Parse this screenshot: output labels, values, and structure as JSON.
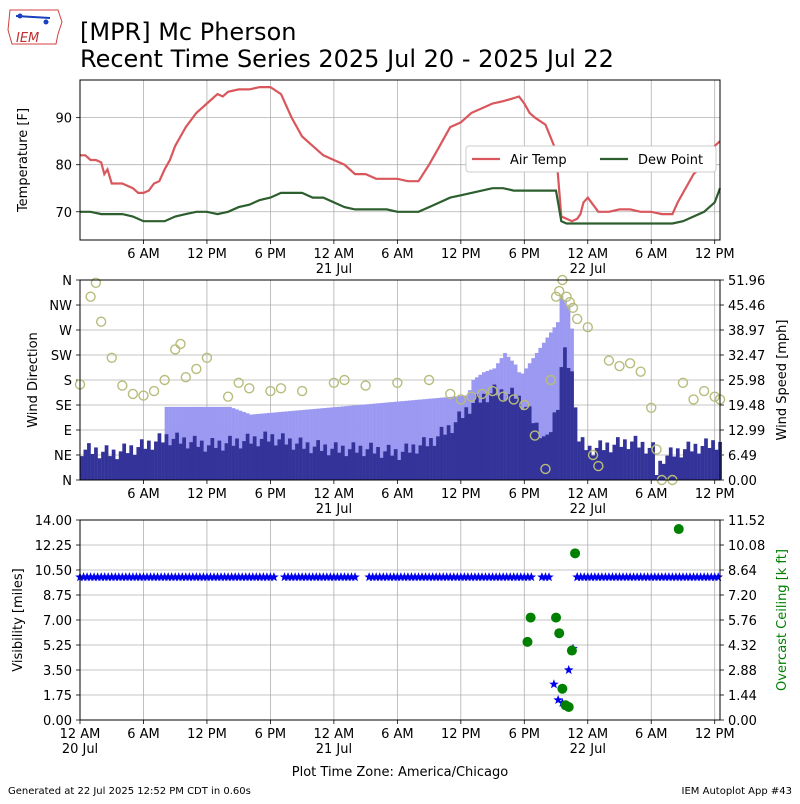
{
  "header": {
    "logo_text": "IEM",
    "title_line1": "[MPR] Mc Pherson",
    "title_line2": "Recent Time Series 2025 Jul 20 - 2025 Jul 22"
  },
  "footer": {
    "generated": "Generated at 22 Jul 2025 12:52 PM CDT in 0.60s",
    "app": "IEM Autoplot App #43",
    "timezone_label": "Plot Time Zone: America/Chicago"
  },
  "colors": {
    "air_temp": "#d9575c",
    "dew_point": "#2d5e2d",
    "gust_bar": "#9b99f1",
    "wind_bar": "#333399",
    "wind_dir": "#b8bc7c",
    "visibility": "#0000ee",
    "ceiling": "#008000",
    "grid": "#b0b0b0"
  },
  "chart_data": [
    {
      "type": "line",
      "ylabel": "Temperature [F]",
      "ylim": [
        64,
        98
      ],
      "xlim_hours": [
        0,
        60.5
      ],
      "yticks": [
        70,
        80,
        90
      ],
      "grid": true,
      "legend_placement": "center-right",
      "legend_columns": 2,
      "x_tick_labels": [
        {
          "hour": 6,
          "label": "6 AM"
        },
        {
          "hour": 12,
          "label": "12 PM"
        },
        {
          "hour": 18,
          "label": "6 PM"
        },
        {
          "hour": 24,
          "label": "12 AM",
          "sub": "21 Jul"
        },
        {
          "hour": 30,
          "label": "6 AM"
        },
        {
          "hour": 36,
          "label": "12 PM"
        },
        {
          "hour": 42,
          "label": "6 PM"
        },
        {
          "hour": 48,
          "label": "12 AM",
          "sub": "22 Jul"
        },
        {
          "hour": 54,
          "label": "6 AM"
        },
        {
          "hour": 60,
          "label": "12 PM"
        }
      ],
      "series": [
        {
          "name": "Air Temp",
          "x": [
            0,
            0.5,
            1,
            1.5,
            2,
            2.3,
            2.6,
            3,
            3.5,
            4,
            4.5,
            5,
            5.5,
            6,
            6.5,
            7,
            7.5,
            8,
            8.5,
            9,
            9.5,
            10,
            11,
            11.5,
            12,
            13,
            13.5,
            14,
            15,
            16,
            17,
            18,
            19,
            20,
            21,
            22,
            23,
            24,
            25,
            26,
            27,
            28,
            29,
            30,
            31,
            32,
            33,
            34,
            35,
            36,
            37,
            38,
            39,
            40,
            40.8,
            41.5,
            42,
            42.5,
            43,
            44,
            45,
            45.5,
            46,
            46.5,
            47,
            47.3,
            47.6,
            48,
            49,
            50,
            51,
            52,
            53,
            54,
            55,
            56,
            56.5,
            57,
            57.5,
            58,
            58.5,
            59,
            59.5,
            60,
            60.5
          ],
          "y": [
            82,
            82,
            81,
            81,
            80.5,
            78,
            79,
            76,
            76,
            76,
            75.5,
            75,
            74,
            74,
            74.5,
            76,
            76.5,
            79,
            81,
            84,
            86,
            88,
            91,
            92,
            93,
            95,
            94.5,
            95.5,
            96,
            96,
            96.5,
            96.5,
            95,
            90,
            86,
            84,
            82,
            81,
            80,
            78,
            78,
            77,
            77,
            77,
            76.5,
            76.5,
            80,
            84,
            88,
            89,
            91,
            92,
            93,
            93.5,
            94,
            94.5,
            93,
            91,
            90,
            88.5,
            83,
            69,
            68.5,
            68,
            68.5,
            69.5,
            72,
            73,
            70,
            70,
            70.5,
            70.5,
            70,
            70,
            69.5,
            69.5,
            72,
            74,
            76,
            78,
            79,
            80,
            82,
            84,
            85
          ]
        },
        {
          "name": "Dew Point",
          "x": [
            0,
            1,
            2,
            3,
            4,
            5,
            6,
            7,
            8,
            9,
            10,
            11,
            12,
            13,
            14,
            15,
            16,
            17,
            18,
            19,
            20,
            21,
            22,
            23,
            24,
            25,
            26,
            27,
            28,
            29,
            30,
            31,
            32,
            33,
            34,
            35,
            36,
            37,
            38,
            39,
            40,
            41,
            42,
            43,
            44,
            45,
            45.5,
            46,
            47,
            48,
            49,
            50,
            51,
            52,
            53,
            54,
            55,
            56,
            57,
            58,
            59,
            60,
            60.5
          ],
          "y": [
            70,
            70,
            69.5,
            69.5,
            69.5,
            69,
            68,
            68,
            68,
            69,
            69.5,
            70,
            70,
            69.5,
            70,
            71,
            71.5,
            72.5,
            73,
            74,
            74,
            74,
            73,
            73,
            72,
            71,
            70.5,
            70.5,
            70.5,
            70.5,
            70,
            70,
            70,
            71,
            72,
            73,
            73.5,
            74,
            74.5,
            75,
            75,
            74.5,
            74.5,
            74.5,
            74.5,
            74.5,
            68,
            67.5,
            67.5,
            67.5,
            67.5,
            67.5,
            67.5,
            67.5,
            67.5,
            67.5,
            67.5,
            67.5,
            68,
            69,
            70,
            72,
            75
          ]
        }
      ]
    },
    {
      "type": "bar",
      "ylabel": "Wind Direction",
      "ylabel_right": "Wind Speed [mph]",
      "xlim_hours": [
        0,
        60.5
      ],
      "direction_ticks": [
        "N",
        "NE",
        "E",
        "SE",
        "S",
        "SW",
        "W",
        "NW",
        "N"
      ],
      "speed_ticks": [
        "0.00",
        "6.49",
        "12.99",
        "19.48",
        "25.98",
        "32.47",
        "38.97",
        "45.46",
        "51.96"
      ],
      "speed_lim": [
        0,
        51.96
      ],
      "direction_lim": [
        0,
        360
      ],
      "grid": true,
      "x_tick_labels": [
        {
          "hour": 6,
          "label": "6 AM"
        },
        {
          "hour": 12,
          "label": "12 PM"
        },
        {
          "hour": 18,
          "label": "6 PM"
        },
        {
          "hour": 24,
          "label": "12 AM",
          "sub": "21 Jul"
        },
        {
          "hour": 30,
          "label": "6 AM"
        },
        {
          "hour": 36,
          "label": "12 PM"
        },
        {
          "hour": 42,
          "label": "6 PM"
        },
        {
          "hour": 48,
          "label": "12 AM",
          "sub": "22 Jul"
        },
        {
          "hour": 54,
          "label": "6 AM"
        },
        {
          "hour": 60,
          "label": "12 PM"
        }
      ],
      "wind_speed": {
        "x": [
          0,
          3,
          6,
          8,
          10,
          12,
          15,
          18,
          21,
          24,
          27,
          30,
          33,
          35,
          37,
          39,
          41,
          42,
          43,
          44,
          45,
          45.5,
          46,
          46.5,
          47,
          48,
          50,
          52,
          54,
          54.3,
          55,
          57,
          59,
          60.5
        ],
        "y": [
          8,
          7,
          9,
          11,
          10,
          9,
          10,
          11,
          9,
          8,
          8,
          7,
          10,
          14,
          20,
          23,
          22,
          19,
          14,
          10,
          20,
          34,
          30,
          26,
          10,
          8,
          9,
          10,
          8,
          2,
          6,
          8,
          9,
          10
        ]
      },
      "wind_gust": {
        "x": [
          8,
          14,
          16,
          36.5,
          37,
          38,
          39,
          40,
          41,
          41.5,
          45,
          45.3,
          45.6,
          46,
          46.3,
          46.6
        ],
        "y": [
          19,
          19,
          17,
          22,
          26,
          28,
          29,
          33,
          30,
          27,
          41,
          48,
          47,
          45,
          40,
          34
        ]
      },
      "wind_direction": {
        "x": [
          0,
          1,
          1.5,
          2,
          3,
          4,
          5,
          6,
          7,
          8,
          9,
          9.5,
          10,
          11,
          12,
          14,
          15,
          16,
          18,
          19,
          21,
          24,
          25,
          27,
          30,
          33,
          35,
          36,
          37,
          38,
          39,
          40,
          41,
          42,
          43,
          44,
          44.5,
          45,
          45.3,
          45.6,
          46,
          46.3,
          46.6,
          47,
          48,
          48.5,
          49,
          50,
          51,
          52,
          53,
          54,
          54.5,
          55,
          56,
          57,
          58,
          59,
          60,
          60.5
        ],
        "y": [
          172,
          330,
          355,
          285,
          220,
          170,
          155,
          152,
          160,
          180,
          235,
          245,
          185,
          200,
          220,
          150,
          175,
          165,
          160,
          165,
          160,
          175,
          180,
          170,
          175,
          180,
          155,
          145,
          150,
          155,
          160,
          150,
          145,
          135,
          80,
          20,
          180,
          330,
          340,
          360,
          330,
          320,
          310,
          290,
          275,
          45,
          25,
          215,
          205,
          210,
          195,
          130,
          55,
          0,
          0,
          175,
          145,
          160,
          150,
          145
        ]
      }
    },
    {
      "type": "scatter",
      "ylabel": "Visibility [miles]",
      "ylabel_right": "Overcast Ceiling [k ft]",
      "xlim_hours": [
        0,
        60.5
      ],
      "vis_ticks": [
        "0.00",
        "1.75",
        "3.50",
        "5.25",
        "7.00",
        "8.75",
        "10.50",
        "12.25",
        "14.00"
      ],
      "ceil_ticks": [
        "0.00",
        "1.44",
        "2.88",
        "4.32",
        "5.76",
        "7.20",
        "8.64",
        "10.08",
        "11.52"
      ],
      "vis_lim": [
        0,
        14
      ],
      "ceil_lim": [
        0,
        11.52
      ],
      "grid": true,
      "x_tick_labels": [
        {
          "hour": 0,
          "label": "12 AM",
          "sub": "20 Jul"
        },
        {
          "hour": 6,
          "label": "6 AM"
        },
        {
          "hour": 12,
          "label": "12 PM"
        },
        {
          "hour": 18,
          "label": "6 PM"
        },
        {
          "hour": 24,
          "label": "12 AM",
          "sub": "21 Jul"
        },
        {
          "hour": 30,
          "label": "6 AM"
        },
        {
          "hour": 36,
          "label": "12 PM"
        },
        {
          "hour": 42,
          "label": "6 PM"
        },
        {
          "hour": 48,
          "label": "12 AM",
          "sub": "22 Jul"
        },
        {
          "hour": 54,
          "label": "6 AM"
        },
        {
          "hour": 60,
          "label": "12 PM"
        }
      ],
      "visibility": {
        "x": [
          44.8,
          45.2,
          45.6,
          45.9,
          46.2,
          46.6,
          47.0
        ],
        "y": [
          2.5,
          1.4,
          1.2,
          1.0,
          3.5,
          5.0,
          10.0
        ]
      },
      "ceiling": {
        "x": [
          42.3,
          42.6,
          45.0,
          45.3,
          45.6,
          45.9,
          46.2,
          46.5,
          46.8,
          56.6
        ],
        "y": [
          4.5,
          5.9,
          5.9,
          5.0,
          1.8,
          0.85,
          0.75,
          4.0,
          9.6,
          11.0
        ]
      }
    }
  ]
}
